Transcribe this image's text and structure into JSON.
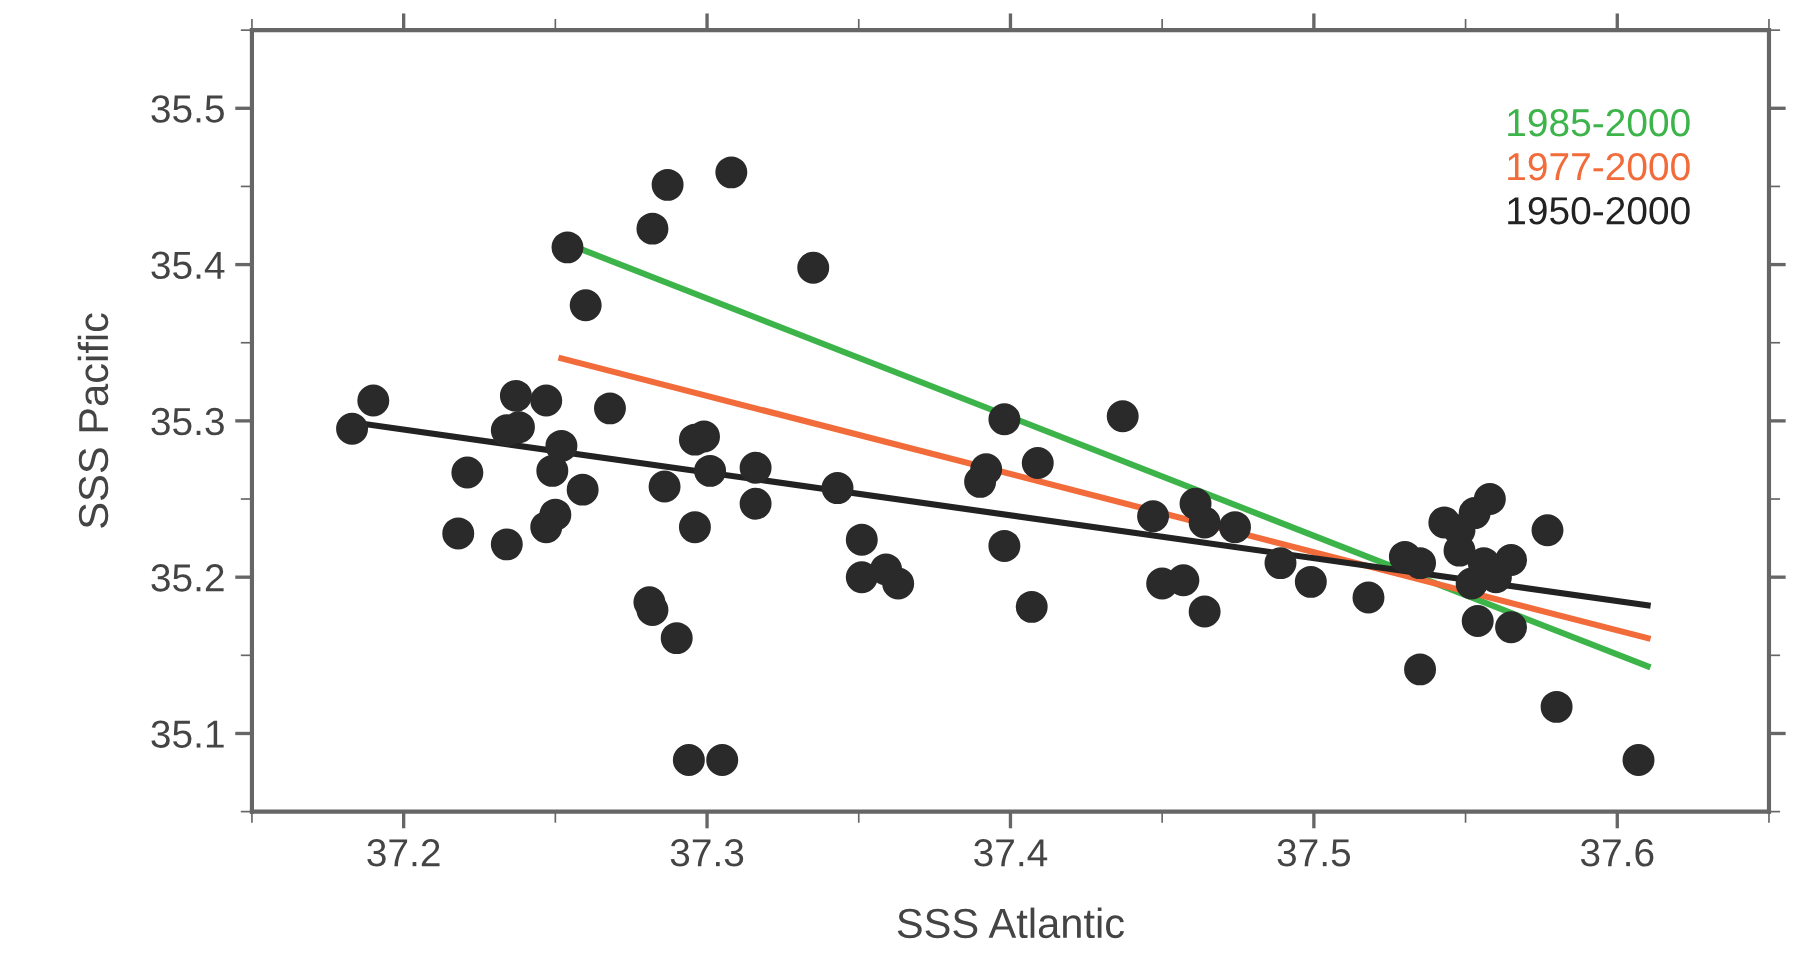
{
  "chart_data": {
    "type": "scatter",
    "xlabel": "SSS Atlantic",
    "ylabel": "SSS Pacific",
    "xlim": [
      37.15,
      37.65
    ],
    "xticks": [
      37.2,
      37.3,
      37.4,
      37.5,
      37.6
    ],
    "ylim": [
      35.05,
      35.55
    ],
    "yticks": [
      35.1,
      35.2,
      35.3,
      35.4,
      35.5
    ],
    "grid": false,
    "legend": "top right",
    "series": [
      {
        "marker": "circle",
        "color": "#2a2a2a",
        "x": [
          37.183,
          37.19,
          37.237,
          37.247,
          37.268,
          37.234,
          37.238,
          37.252,
          37.221,
          37.249,
          37.259,
          37.286,
          37.296,
          37.299,
          37.301,
          37.316,
          37.316,
          37.343,
          37.218,
          37.234,
          37.247,
          37.25,
          37.296,
          37.351,
          37.351,
          37.359,
          37.363,
          37.281,
          37.282,
          37.29,
          37.294,
          37.305,
          37.254,
          37.26,
          37.287,
          37.308,
          37.282,
          37.335,
          37.398,
          37.392,
          37.39,
          37.409,
          37.398,
          37.407,
          37.437,
          37.447,
          37.461,
          37.464,
          37.474,
          37.45,
          37.457,
          37.464,
          37.489,
          37.499,
          37.518,
          37.53,
          37.535,
          37.543,
          37.548,
          37.548,
          37.553,
          37.558,
          37.556,
          37.565,
          37.56,
          37.577,
          37.552,
          37.554,
          37.565,
          37.535,
          37.58,
          37.607
        ],
        "values": [
          35.295,
          35.313,
          35.316,
          35.313,
          35.308,
          35.294,
          35.296,
          35.284,
          35.267,
          35.268,
          35.256,
          35.258,
          35.288,
          35.29,
          35.268,
          35.27,
          35.247,
          35.257,
          35.228,
          35.221,
          35.232,
          35.24,
          35.232,
          35.224,
          35.2,
          35.205,
          35.196,
          35.184,
          35.179,
          35.161,
          35.083,
          35.083,
          35.411,
          35.374,
          35.451,
          35.459,
          35.423,
          35.398,
          35.301,
          35.269,
          35.261,
          35.273,
          35.22,
          35.181,
          35.303,
          35.239,
          35.247,
          35.235,
          35.232,
          35.196,
          35.198,
          35.178,
          35.209,
          35.197,
          35.187,
          35.213,
          35.209,
          35.235,
          35.23,
          35.217,
          35.241,
          35.25,
          35.209,
          35.211,
          35.2,
          35.23,
          35.196,
          35.172,
          35.168,
          35.141,
          35.117,
          35.083
        ]
      },
      {
        "type": "line",
        "name": "1985-2000",
        "color": "#3cb44a",
        "x": [
          37.253,
          37.61
        ],
        "values": [
          35.414,
          35.143
        ]
      },
      {
        "type": "line",
        "name": "1977-2000",
        "color": "#f26b3a",
        "x": [
          37.252,
          37.61
        ],
        "values": [
          35.34,
          35.161
        ]
      },
      {
        "type": "line",
        "name": "1950-2000",
        "color": "#222222",
        "x": [
          37.187,
          37.61
        ],
        "values": [
          35.298,
          35.182
        ]
      }
    ]
  }
}
